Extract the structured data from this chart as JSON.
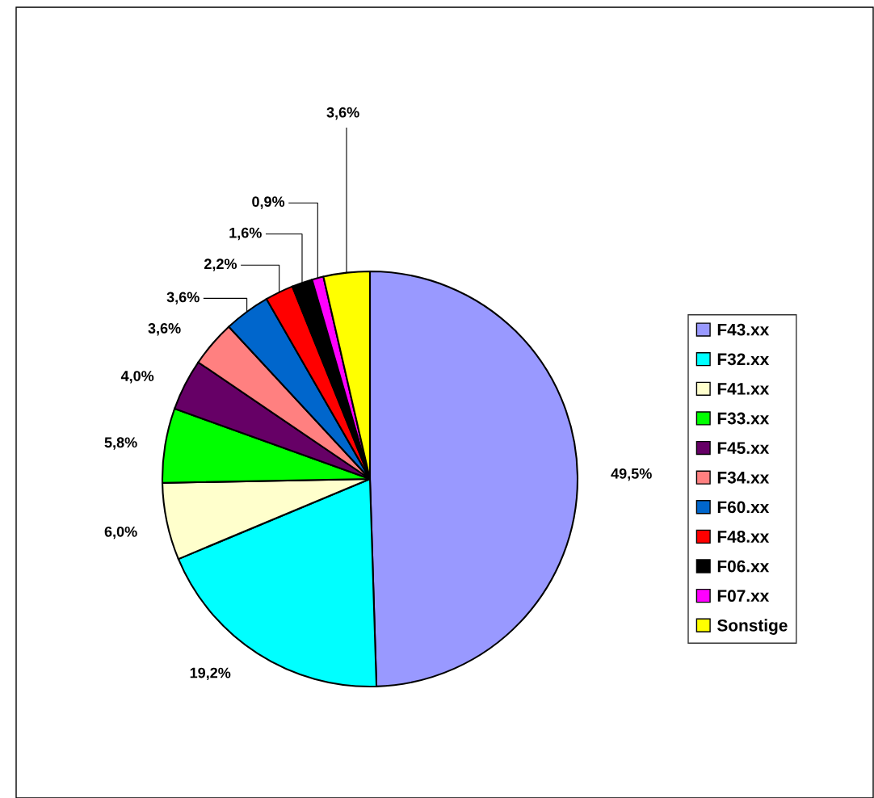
{
  "chart_data": {
    "type": "pie",
    "categories": [
      "F43.xx",
      "F32.xx",
      "F41.xx",
      "F33.xx",
      "F45.xx",
      "F34.xx",
      "F60.xx",
      "F48.xx",
      "F06.xx",
      "F07.xx",
      "Sonstige"
    ],
    "values": [
      49.5,
      19.2,
      6.0,
      5.8,
      4.0,
      3.6,
      3.6,
      2.2,
      1.6,
      0.9,
      3.6
    ],
    "value_labels": [
      "49,5%",
      "19,2%",
      "6,0%",
      "5,8%",
      "4,0%",
      "3,6%",
      "3,6%",
      "2,2%",
      "1,6%",
      "0,9%",
      "3,6%"
    ],
    "colors": [
      "#9999ff",
      "#00ffff",
      "#ffffcc",
      "#00ff00",
      "#660066",
      "#ff8080",
      "#0066cc",
      "#ff0000",
      "#000000",
      "#ff00ff",
      "#ffff00"
    ],
    "legend": "right"
  }
}
